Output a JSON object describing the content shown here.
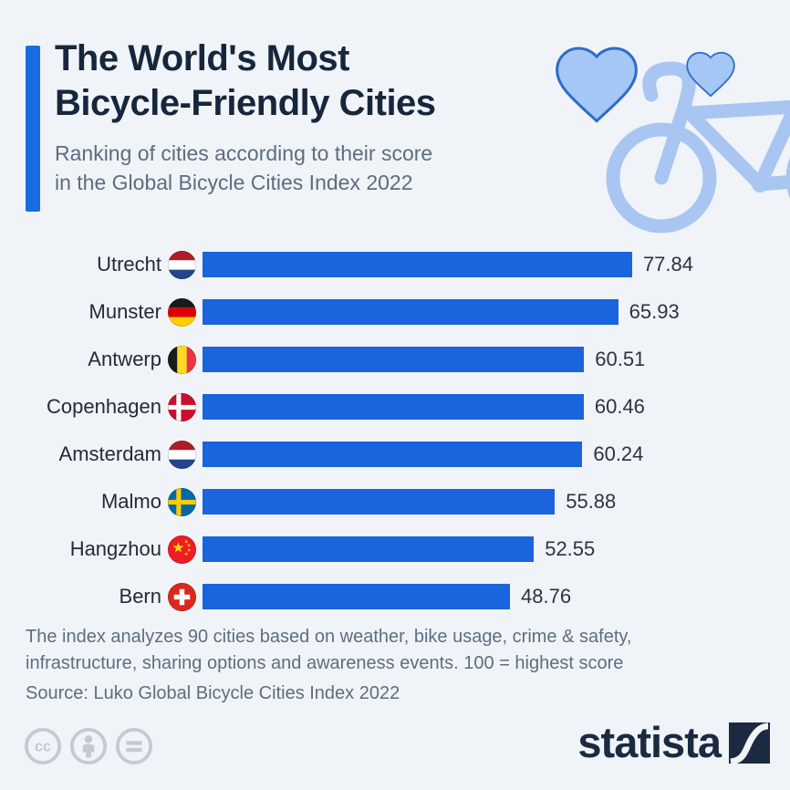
{
  "header": {
    "title_line1": "The World's Most",
    "title_line2": "Bicycle-Friendly Cities",
    "subtitle_line1": "Ranking of cities according to their score",
    "subtitle_line2": "in the Global Bicycle Cities Index 2022"
  },
  "chart_data": {
    "type": "bar",
    "orientation": "horizontal",
    "title": "The World's Most Bicycle-Friendly Cities",
    "xlabel": "",
    "ylabel": "",
    "xlim": [
      0,
      77.84
    ],
    "grid": false,
    "legend": false,
    "categories": [
      "Utrecht",
      "Munster",
      "Antwerp",
      "Copenhagen",
      "Amsterdam",
      "Malmo",
      "Hangzhou",
      "Bern"
    ],
    "values": [
      77.84,
      65.93,
      60.51,
      60.46,
      60.24,
      55.88,
      52.55,
      48.76
    ],
    "value_labels": [
      "77.84",
      "65.93",
      "60.51",
      "60.46",
      "60.24",
      "55.88",
      "52.55",
      "48.76"
    ],
    "flags": [
      "nl",
      "de",
      "be",
      "dk",
      "nl",
      "se",
      "cn",
      "ch"
    ],
    "bar_color": "#1a64dd"
  },
  "footnote": {
    "line1": "The index analyzes 90 cities based on weather, bike usage, crime & safety,",
    "line2": "infrastructure, sharing options and awareness events. 100 = highest score",
    "source": "Source: Luko Global Bicycle Cities Index 2022"
  },
  "footer": {
    "brand": "statista",
    "license_icons": [
      "cc-icon",
      "attribution-icon",
      "no-derivatives-icon"
    ]
  },
  "colors": {
    "background": "#f0f4f8",
    "accent": "#1a6ce4",
    "bar": "#1a64dd",
    "title": "#16263c",
    "subtitle": "#5c6d80",
    "graphic_blue": "#a8c6f1",
    "heart_fill": "#a5c7f5",
    "heart_stroke": "#2e6cc9",
    "brand_navy": "#1b2a41",
    "license_gray": "#c4cad3"
  }
}
